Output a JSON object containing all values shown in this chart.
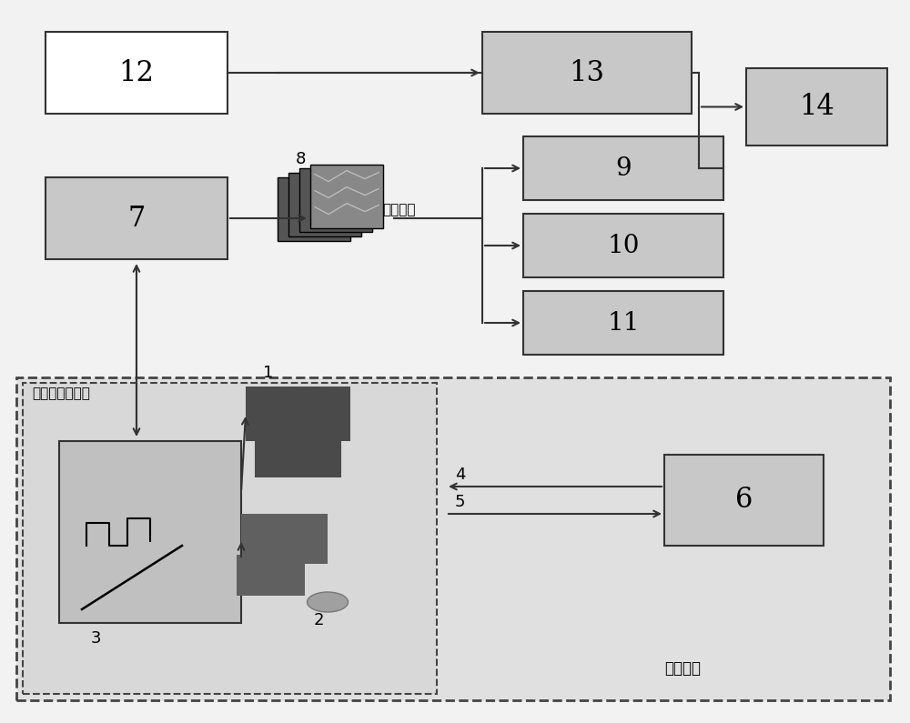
{
  "bg_color": "#f2f2f2",
  "white": "#ffffff",
  "light_gray": "#d0d0d0",
  "stipple_gray": "#c8c8c8",
  "dark_gray": "#444444",
  "box_edge": "#333333",
  "outer_dash_bg": "#e0e0e0",
  "inner_dash_bg": "#d8d8d8",
  "cam_fill": "#c0c0c0",
  "block1_color": "#4a4a4a",
  "block2_color": "#606060",
  "capsule_color": "#a0a0a0",
  "label_12": "12",
  "label_13": "13",
  "label_14": "14",
  "label_7": "7",
  "label_9": "9",
  "label_10": "10",
  "label_11": "11",
  "label_6": "6",
  "label_8": "8",
  "label_1": "1",
  "label_2": "2",
  "label_3": "3",
  "label_4": "4",
  "label_5": "5",
  "text_xinxi": "信息提取",
  "text_juli": "距离选通成像仪",
  "text_yuanwei": "原位探测"
}
